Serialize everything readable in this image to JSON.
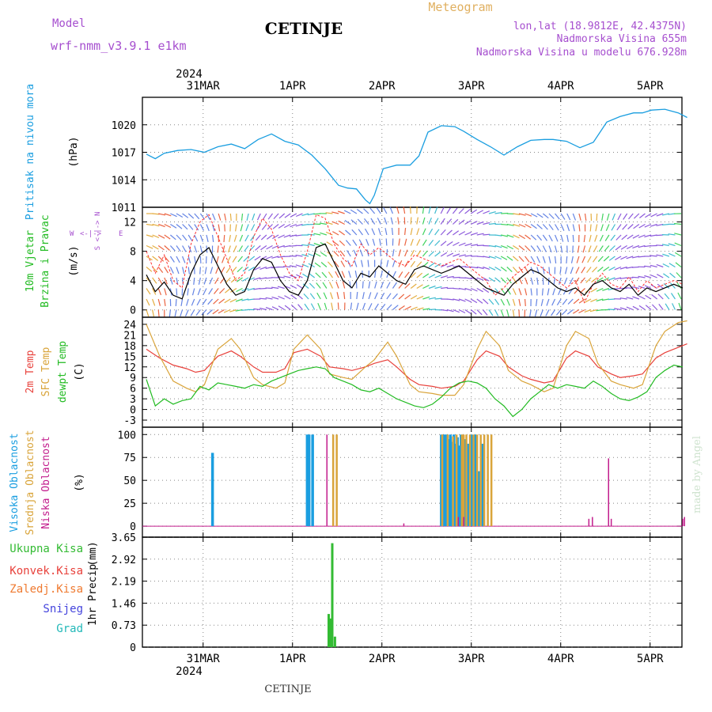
{
  "header": {
    "model_label": "Model",
    "model_name": "wrf-nmm_v3.9.1  e1km",
    "title": "CETINJE",
    "product": "Meteogram",
    "coords": "lon,lat (18.9812E, 42.4375N)",
    "altitude": "Nadmorska Visina 655m",
    "model_altitude": "Nadmorska Visina u modelu 676.928m",
    "footer": "CETINJE",
    "credit": "made by Angel"
  },
  "colors": {
    "pressure": "#1a9ee0",
    "wind_speed": "#000000",
    "wind_gust": "#ff3333",
    "temp2m": "#e8413b",
    "sfc_temp": "#d9a43a",
    "dewpoint": "#22bb22",
    "high_cloud": "#1a9ee0",
    "mid_cloud": "#d9a43a",
    "low_cloud": "#c21c8c",
    "total_precip": "#33bb33",
    "conv_precip": "#e8413b",
    "frz_precip": "#ef7a30",
    "snow": "#4444dd",
    "hail": "#22b8b8",
    "model_label": "#a64fcf",
    "product_label": "#e0b060"
  },
  "time_axis": {
    "top_year": "2024",
    "bottom_year": "2024",
    "labels": [
      "31MAR",
      "1APR",
      "2APR",
      "3APR",
      "4APR",
      "5APR"
    ]
  },
  "chart_data": [
    {
      "type": "line",
      "id": "pressure",
      "ylabel_line1": "Pritisak na nivou mora",
      "ylabel_unit": "(hPa)",
      "yticks": [
        "1011",
        "1014",
        "1017",
        "1020"
      ],
      "ylim": [
        1011,
        1023
      ],
      "x_unit": "days after 30MAR 12UTC",
      "series": [
        {
          "x": [
            0.0,
            0.1,
            0.2,
            0.35,
            0.5,
            0.65,
            0.8,
            0.95,
            1.1,
            1.25,
            1.4,
            1.55,
            1.7,
            1.85,
            2.0,
            2.15,
            2.25,
            2.35,
            2.45,
            2.5,
            2.55,
            2.65,
            2.8,
            2.95,
            3.05,
            3.15,
            3.3,
            3.45,
            3.55,
            3.7,
            3.85,
            4.0,
            4.15,
            4.3,
            4.45,
            4.55,
            4.7,
            4.85,
            5.0,
            5.15,
            5.3,
            5.45,
            5.55,
            5.65,
            5.8,
            5.95,
            6.05
          ],
          "values": [
            1016.8,
            1016.3,
            1016.9,
            1017.2,
            1017.3,
            1017.0,
            1017.6,
            1017.9,
            1017.4,
            1018.4,
            1019.0,
            1018.2,
            1017.8,
            1016.7,
            1015.2,
            1013.4,
            1013.1,
            1013.0,
            1011.8,
            1011.4,
            1012.3,
            1015.2,
            1015.6,
            1015.6,
            1016.6,
            1019.2,
            1019.9,
            1019.8,
            1019.3,
            1018.4,
            1017.6,
            1016.7,
            1017.6,
            1018.3,
            1018.4,
            1018.4,
            1018.2,
            1017.5,
            1018.1,
            1020.3,
            1020.9,
            1021.3,
            1021.3,
            1021.6,
            1021.7,
            1021.3,
            1020.8
          ]
        }
      ]
    },
    {
      "type": "line",
      "id": "wind",
      "ylabel_line1": "10m Vjetar",
      "ylabel_line2": "Brzina i Pravac",
      "ylabel_unit": "(m/s)",
      "compass": [
        "W",
        "<-|->",
        "E",
        "S <-|-> N"
      ],
      "yticks": [
        "0",
        "4",
        "8",
        "12"
      ],
      "ylim": [
        -1,
        14
      ],
      "series": [
        {
          "name": "speed",
          "x": [
            0.0,
            0.1,
            0.2,
            0.3,
            0.4,
            0.5,
            0.6,
            0.7,
            0.8,
            0.9,
            1.0,
            1.1,
            1.2,
            1.3,
            1.4,
            1.5,
            1.6,
            1.7,
            1.8,
            1.9,
            2.0,
            2.1,
            2.2,
            2.3,
            2.4,
            2.5,
            2.6,
            2.7,
            2.8,
            2.9,
            3.0,
            3.1,
            3.2,
            3.3,
            3.4,
            3.5,
            3.6,
            3.7,
            3.8,
            3.9,
            4.0,
            4.1,
            4.2,
            4.3,
            4.4,
            4.5,
            4.6,
            4.7,
            4.8,
            4.9,
            5.0,
            5.1,
            5.2,
            5.3,
            5.4,
            5.5,
            5.6,
            5.7,
            5.8,
            5.9,
            6.0
          ],
          "values": [
            4.8,
            2.5,
            3.8,
            2.0,
            1.5,
            5.0,
            7.5,
            8.5,
            6.0,
            3.5,
            2.0,
            2.5,
            5.5,
            7.0,
            6.5,
            4.0,
            2.5,
            2.0,
            4.0,
            8.5,
            9.0,
            6.5,
            4.0,
            3.0,
            5.0,
            4.5,
            6.0,
            5.0,
            4.0,
            3.5,
            5.5,
            6.0,
            5.5,
            5.0,
            5.5,
            6.0,
            5.0,
            4.0,
            3.0,
            2.5,
            2.0,
            3.5,
            4.5,
            5.5,
            5.0,
            4.0,
            3.0,
            2.5,
            3.0,
            2.0,
            3.5,
            4.0,
            3.0,
            2.5,
            3.5,
            2.0,
            3.0,
            2.5,
            3.0,
            3.5,
            3.0
          ]
        },
        {
          "name": "gust",
          "x": [
            0.0,
            0.1,
            0.2,
            0.3,
            0.4,
            0.5,
            0.6,
            0.7,
            0.8,
            0.9,
            1.0,
            1.1,
            1.2,
            1.3,
            1.4,
            1.5,
            1.6,
            1.7,
            1.8,
            1.9,
            2.0,
            2.1,
            2.2,
            2.3,
            2.4,
            2.5,
            2.6,
            2.7,
            2.8,
            2.9,
            3.0,
            3.1,
            3.2,
            3.3,
            3.4,
            3.5,
            3.6,
            3.7,
            3.8,
            3.9,
            4.0,
            4.1,
            4.2,
            4.3,
            4.4,
            4.5,
            4.6,
            4.7,
            4.8,
            4.9,
            5.0,
            5.1,
            5.2,
            5.3,
            5.4,
            5.5,
            5.6,
            5.7,
            5.8,
            5.9,
            6.0
          ],
          "values": [
            8.0,
            5.0,
            7.5,
            4.0,
            3.0,
            9.0,
            12.0,
            13.0,
            10.0,
            7.0,
            4.0,
            5.0,
            10.0,
            12.5,
            11.0,
            7.5,
            5.0,
            4.0,
            8.0,
            13.0,
            12.5,
            9.0,
            7.0,
            6.0,
            9.0,
            7.5,
            8.5,
            7.5,
            6.5,
            6.0,
            7.5,
            7.0,
            6.5,
            6.0,
            6.5,
            7.0,
            6.0,
            5.0,
            4.0,
            2.0,
            3.0,
            4.5,
            5.5,
            6.5,
            6.0,
            5.0,
            4.0,
            3.0,
            4.0,
            1.0,
            3.5,
            5.0,
            3.5,
            3.0,
            4.5,
            2.5,
            4.0,
            3.0,
            3.5,
            4.0,
            3.5
          ]
        }
      ]
    },
    {
      "type": "line",
      "id": "temperature",
      "ylabel_line1": "2m Temp",
      "ylabel_line2": "SFC Temp",
      "ylabel_line3": "dewpt Temp",
      "ylabel_unit": "(C)",
      "yticks": [
        "-3",
        "0",
        "3",
        "6",
        "9",
        "12",
        "15",
        "18",
        "21",
        "24"
      ],
      "ylim": [
        -5,
        26
      ],
      "series": [
        {
          "name": "2m Temp",
          "x": [
            0.0,
            0.15,
            0.3,
            0.45,
            0.55,
            0.65,
            0.8,
            0.95,
            1.05,
            1.2,
            1.3,
            1.45,
            1.55,
            1.65,
            1.8,
            1.95,
            2.05,
            2.2,
            2.3,
            2.45,
            2.55,
            2.7,
            2.8,
            2.95,
            3.05,
            3.2,
            3.3,
            3.45,
            3.55,
            3.7,
            3.8,
            3.95,
            4.05,
            4.2,
            4.3,
            4.45,
            4.55,
            4.7,
            4.8,
            4.95,
            5.05,
            5.2,
            5.3,
            5.45,
            5.55,
            5.7,
            5.8,
            5.95,
            6.05
          ],
          "values": [
            17.0,
            14.5,
            12.5,
            11.5,
            10.5,
            11.0,
            15.0,
            16.5,
            15.0,
            12.0,
            10.5,
            10.5,
            11.5,
            16.0,
            17.0,
            15.0,
            12.0,
            11.5,
            11.0,
            12.0,
            13.0,
            14.0,
            12.0,
            8.5,
            7.0,
            6.5,
            6.0,
            6.5,
            8.0,
            14.0,
            16.5,
            15.0,
            12.0,
            9.5,
            8.5,
            7.5,
            8.0,
            14.5,
            16.5,
            15.0,
            12.0,
            10.0,
            9.0,
            9.5,
            10.0,
            14.5,
            16.0,
            17.5,
            18.5
          ]
        },
        {
          "name": "SFC Temp",
          "x": [
            0.0,
            0.15,
            0.3,
            0.45,
            0.55,
            0.65,
            0.8,
            0.95,
            1.05,
            1.2,
            1.3,
            1.45,
            1.55,
            1.65,
            1.8,
            1.95,
            2.05,
            2.2,
            2.3,
            2.45,
            2.55,
            2.7,
            2.8,
            2.95,
            3.05,
            3.2,
            3.3,
            3.45,
            3.55,
            3.7,
            3.8,
            3.95,
            4.05,
            4.2,
            4.3,
            4.45,
            4.55,
            4.7,
            4.8,
            4.95,
            5.05,
            5.2,
            5.3,
            5.45,
            5.55,
            5.7,
            5.8,
            5.95,
            6.05
          ],
          "values": [
            24.0,
            15.0,
            8.0,
            6.0,
            5.0,
            7.0,
            17.0,
            20.0,
            17.0,
            9.0,
            7.0,
            6.0,
            7.5,
            17.0,
            21.0,
            17.0,
            10.0,
            9.0,
            8.5,
            12.0,
            14.0,
            19.0,
            15.0,
            7.0,
            5.0,
            4.5,
            4.0,
            4.0,
            7.0,
            17.0,
            22.0,
            18.0,
            11.0,
            8.0,
            7.0,
            5.0,
            6.0,
            18.0,
            22.0,
            20.0,
            13.0,
            8.0,
            7.0,
            6.0,
            7.0,
            18.0,
            22.0,
            24.5,
            25.0
          ]
        },
        {
          "name": "dewpt Temp",
          "x": [
            0.0,
            0.1,
            0.2,
            0.3,
            0.4,
            0.5,
            0.6,
            0.7,
            0.8,
            0.9,
            1.0,
            1.1,
            1.2,
            1.3,
            1.4,
            1.5,
            1.6,
            1.7,
            1.8,
            1.9,
            2.0,
            2.1,
            2.2,
            2.3,
            2.4,
            2.5,
            2.6,
            2.7,
            2.8,
            2.9,
            3.0,
            3.1,
            3.2,
            3.3,
            3.4,
            3.5,
            3.6,
            3.7,
            3.8,
            3.9,
            4.0,
            4.1,
            4.2,
            4.3,
            4.4,
            4.5,
            4.6,
            4.7,
            4.8,
            4.9,
            5.0,
            5.1,
            5.2,
            5.3,
            5.4,
            5.5,
            5.6,
            5.7,
            5.8,
            5.9,
            6.0
          ],
          "values": [
            8.5,
            1.0,
            3.0,
            1.5,
            2.5,
            3.0,
            6.5,
            5.5,
            7.5,
            7.0,
            6.5,
            6.0,
            7.0,
            6.5,
            8.0,
            9.0,
            10.0,
            11.0,
            11.5,
            12.0,
            11.5,
            9.0,
            8.0,
            7.0,
            5.5,
            5.0,
            6.0,
            4.5,
            3.0,
            2.0,
            1.0,
            0.5,
            1.5,
            3.5,
            6.0,
            7.5,
            8.0,
            7.5,
            6.0,
            3.0,
            1.0,
            -2.0,
            0.0,
            3.0,
            5.0,
            7.0,
            6.0,
            7.0,
            6.5,
            6.0,
            8.0,
            6.5,
            4.5,
            3.0,
            2.5,
            3.5,
            5.0,
            9.0,
            11.0,
            12.5,
            12.0
          ]
        }
      ]
    },
    {
      "type": "bar",
      "id": "cloud",
      "ylabel_line1": "Visoka Oblacnost",
      "ylabel_line2": "Srednja Oblacnost",
      "ylabel_line3": "Niska Oblacnost",
      "ylabel_unit": "(%)",
      "yticks": [
        "0",
        "25",
        "50",
        "75",
        "100"
      ],
      "ylim": [
        0,
        100
      ],
      "series": [
        {
          "name": "Visoka Oblacnost",
          "x": [
            0.74,
            1.8,
            1.82,
            1.86,
            3.3,
            3.32,
            3.34,
            3.36,
            3.38,
            3.4,
            3.42,
            3.44,
            3.46,
            3.48,
            3.5,
            3.52,
            3.56,
            3.6,
            3.64,
            3.68,
            3.72,
            3.76
          ],
          "values": [
            80,
            100,
            100,
            100,
            100,
            100,
            100,
            100,
            95,
            100,
            92,
            100,
            90,
            97,
            88,
            100,
            95,
            90,
            100,
            100,
            60,
            90
          ]
        },
        {
          "name": "Srednja Oblacnost",
          "x": [
            2.09,
            2.13,
            3.31,
            3.37,
            3.43,
            3.47,
            3.53,
            3.55,
            3.58,
            3.62,
            3.66,
            3.7,
            3.74,
            3.78,
            3.82,
            3.86
          ],
          "values": [
            100,
            100,
            100,
            100,
            98,
            100,
            100,
            100,
            100,
            100,
            100,
            100,
            100,
            100,
            100,
            100
          ]
        },
        {
          "name": "Niska Oblacnost",
          "x": [
            2.02,
            2.88,
            3.49,
            3.55,
            4.95,
            4.99,
            5.17,
            5.2,
            6.0,
            6.02
          ],
          "values": [
            100,
            3,
            10,
            10,
            8,
            10,
            74,
            8,
            8,
            10
          ]
        }
      ]
    },
    {
      "type": "bar",
      "id": "precip",
      "ylabel_line1": "1hr Precip",
      "ylabel_unit": "(mm)",
      "legend": [
        "Ukupna Kisa",
        "Konvek.Kisa",
        "Zaledj.Kisa",
        "Snijeg",
        "Grad"
      ],
      "yticks": [
        "0",
        "0.73",
        "1.46",
        "2.19",
        "2.92",
        "3.65"
      ],
      "ylim": [
        0,
        3.65
      ],
      "series": [
        {
          "name": "Ukupna Kisa",
          "x": [
            2.04,
            2.06,
            2.08,
            2.11
          ],
          "values": [
            1.1,
            0.95,
            3.45,
            0.35
          ]
        }
      ]
    }
  ]
}
